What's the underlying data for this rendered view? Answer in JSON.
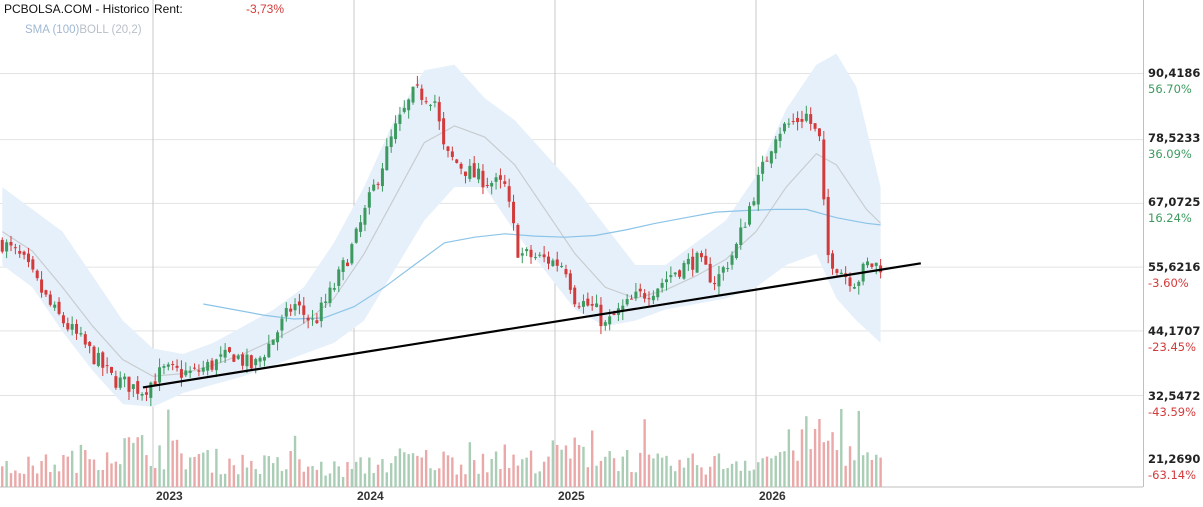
{
  "header": {
    "site": "PCBOLSA.COM - Historico",
    "rent_label": "Rent:",
    "rent_value": "-3,73%"
  },
  "legend": {
    "sma": "SMA (100)",
    "boll": "BOLL (20,2)"
  },
  "colors": {
    "up": "#3c9a5f",
    "down": "#d23b3b",
    "up_volume": "#a9cdb5",
    "down_volume": "#eaa8a8",
    "sma": "#8cc4e8",
    "boll_band": "#e6f0fa",
    "boll_mid": "#c8cccf",
    "trendline": "#000000",
    "grid": "#e3e3e3",
    "year_line": "#c8c8c8"
  },
  "y_axis": {
    "prices": [
      "90,4186",
      "78,5233",
      "67,0725",
      "55,6216",
      "44,1707",
      "32,5472",
      "21,2690"
    ],
    "percents": [
      "56.70%",
      "36.09%",
      "16.24%",
      "-3.60%",
      "-23.45%",
      "-43.59%",
      "-63.14%"
    ],
    "percent_signs": [
      "pos",
      "pos",
      "pos",
      "neg",
      "neg",
      "neg",
      "neg"
    ]
  },
  "x_axis": {
    "years": [
      "2023",
      "2024",
      "2025",
      "2026"
    ]
  },
  "chart_data": {
    "type": "candlestick",
    "title": "",
    "x_range": [
      2022.25,
      2026.65
    ],
    "price_range": [
      21.269,
      90.4186
    ],
    "gridlines": [
      90.4186,
      78.5233,
      67.0725,
      55.6216,
      44.1707,
      32.5472
    ],
    "price_path": [
      [
        2022.25,
        60
      ],
      [
        2022.35,
        57
      ],
      [
        2022.5,
        48
      ],
      [
        2022.65,
        42
      ],
      [
        2022.8,
        35.5
      ],
      [
        2022.95,
        33.5
      ],
      [
        2023.05,
        37
      ],
      [
        2023.2,
        36.5
      ],
      [
        2023.4,
        40
      ],
      [
        2023.5,
        37.5
      ],
      [
        2023.6,
        43
      ],
      [
        2023.7,
        49
      ],
      [
        2023.8,
        45.5
      ],
      [
        2023.9,
        52
      ],
      [
        2024.0,
        60
      ],
      [
        2024.1,
        70
      ],
      [
        2024.2,
        80
      ],
      [
        2024.3,
        87
      ],
      [
        2024.4,
        86
      ],
      [
        2024.45,
        76
      ],
      [
        2024.6,
        72
      ],
      [
        2024.75,
        70
      ],
      [
        2024.82,
        58
      ],
      [
        2024.95,
        57
      ],
      [
        2025.05,
        56
      ],
      [
        2025.1,
        50
      ],
      [
        2025.2,
        48
      ],
      [
        2025.25,
        45
      ],
      [
        2025.3,
        47
      ],
      [
        2025.4,
        50
      ],
      [
        2025.5,
        52
      ],
      [
        2025.6,
        55
      ],
      [
        2025.7,
        57
      ],
      [
        2025.8,
        53
      ],
      [
        2025.9,
        59
      ],
      [
        2026.0,
        70
      ],
      [
        2026.1,
        80
      ],
      [
        2026.25,
        83
      ],
      [
        2026.32,
        78
      ],
      [
        2026.35,
        58
      ],
      [
        2026.45,
        54
      ],
      [
        2026.5,
        53
      ],
      [
        2026.55,
        56
      ],
      [
        2026.62,
        56
      ]
    ],
    "sma100_path": [
      [
        2023.25,
        49
      ],
      [
        2023.4,
        48
      ],
      [
        2023.55,
        47
      ],
      [
        2023.7,
        46.3
      ],
      [
        2023.85,
        46.5
      ],
      [
        2024.0,
        48.5
      ],
      [
        2024.15,
        52
      ],
      [
        2024.3,
        56
      ],
      [
        2024.45,
        60
      ],
      [
        2024.6,
        61
      ],
      [
        2024.75,
        61.6
      ],
      [
        2024.9,
        61.2
      ],
      [
        2025.05,
        61
      ],
      [
        2025.2,
        61.3
      ],
      [
        2025.35,
        62.3
      ],
      [
        2025.5,
        63.5
      ],
      [
        2025.65,
        64.5
      ],
      [
        2025.8,
        65.5
      ],
      [
        2025.95,
        65.8
      ],
      [
        2026.1,
        66
      ],
      [
        2026.25,
        66
      ],
      [
        2026.4,
        64.5
      ],
      [
        2026.55,
        63.5
      ],
      [
        2026.62,
        63.2
      ]
    ],
    "boll_mid_path": [
      [
        2022.25,
        62
      ],
      [
        2022.4,
        58.5
      ],
      [
        2022.55,
        52
      ],
      [
        2022.7,
        45
      ],
      [
        2022.85,
        39
      ],
      [
        2023.0,
        36
      ],
      [
        2023.15,
        36.5
      ],
      [
        2023.3,
        38
      ],
      [
        2023.45,
        40
      ],
      [
        2023.6,
        42.5
      ],
      [
        2023.75,
        45.5
      ],
      [
        2023.9,
        50
      ],
      [
        2024.05,
        58
      ],
      [
        2024.2,
        68
      ],
      [
        2024.35,
        78
      ],
      [
        2024.5,
        81
      ],
      [
        2024.65,
        79
      ],
      [
        2024.8,
        74
      ],
      [
        2024.95,
        66
      ],
      [
        2025.1,
        58
      ],
      [
        2025.25,
        52
      ],
      [
        2025.4,
        50
      ],
      [
        2025.55,
        51.5
      ],
      [
        2025.7,
        54
      ],
      [
        2025.85,
        57
      ],
      [
        2026.0,
        62
      ],
      [
        2026.15,
        70
      ],
      [
        2026.3,
        76
      ],
      [
        2026.4,
        74
      ],
      [
        2026.55,
        66
      ],
      [
        2026.62,
        63.5
      ]
    ],
    "boll_upper_path": [
      [
        2022.25,
        70
      ],
      [
        2022.4,
        66
      ],
      [
        2022.55,
        62
      ],
      [
        2022.7,
        54
      ],
      [
        2022.85,
        46
      ],
      [
        2023.0,
        41
      ],
      [
        2023.15,
        40
      ],
      [
        2023.3,
        42
      ],
      [
        2023.45,
        45
      ],
      [
        2023.6,
        48
      ],
      [
        2023.75,
        52
      ],
      [
        2023.9,
        60
      ],
      [
        2024.05,
        70
      ],
      [
        2024.2,
        82
      ],
      [
        2024.35,
        91
      ],
      [
        2024.5,
        92
      ],
      [
        2024.65,
        86
      ],
      [
        2024.8,
        82
      ],
      [
        2024.95,
        76
      ],
      [
        2025.1,
        70
      ],
      [
        2025.25,
        63
      ],
      [
        2025.4,
        56
      ],
      [
        2025.55,
        56
      ],
      [
        2025.7,
        60
      ],
      [
        2025.85,
        64
      ],
      [
        2026.0,
        72
      ],
      [
        2026.15,
        84
      ],
      [
        2026.3,
        92
      ],
      [
        2026.4,
        94
      ],
      [
        2026.5,
        88
      ],
      [
        2026.62,
        70
      ]
    ],
    "boll_lower_path": [
      [
        2022.25,
        56
      ],
      [
        2022.4,
        52
      ],
      [
        2022.55,
        44
      ],
      [
        2022.7,
        37
      ],
      [
        2022.85,
        31
      ],
      [
        2023.0,
        30.5
      ],
      [
        2023.15,
        33
      ],
      [
        2023.3,
        34.5
      ],
      [
        2023.45,
        36
      ],
      [
        2023.6,
        38
      ],
      [
        2023.75,
        40
      ],
      [
        2023.9,
        42
      ],
      [
        2024.05,
        46
      ],
      [
        2024.2,
        55
      ],
      [
        2024.35,
        64
      ],
      [
        2024.5,
        70
      ],
      [
        2024.65,
        70
      ],
      [
        2024.8,
        62
      ],
      [
        2024.95,
        55
      ],
      [
        2025.1,
        48
      ],
      [
        2025.25,
        45
      ],
      [
        2025.4,
        46
      ],
      [
        2025.55,
        48
      ],
      [
        2025.7,
        49
      ],
      [
        2025.85,
        50
      ],
      [
        2026.0,
        52
      ],
      [
        2026.15,
        56
      ],
      [
        2026.3,
        58
      ],
      [
        2026.4,
        50
      ],
      [
        2026.5,
        46
      ],
      [
        2026.62,
        42
      ]
    ],
    "trendline": [
      [
        2022.95,
        34
      ],
      [
        2026.82,
        56.3
      ]
    ],
    "volume_profile": [
      [
        2022.25,
        0.25
      ],
      [
        2022.55,
        0.35
      ],
      [
        2022.85,
        0.55
      ],
      [
        2023.05,
        0.5
      ],
      [
        2023.35,
        0.35
      ],
      [
        2023.65,
        0.3
      ],
      [
        2023.95,
        0.25
      ],
      [
        2024.25,
        0.4
      ],
      [
        2024.55,
        0.35
      ],
      [
        2024.85,
        0.35
      ],
      [
        2025.05,
        0.5
      ],
      [
        2025.25,
        0.45
      ],
      [
        2025.55,
        0.3
      ],
      [
        2025.85,
        0.35
      ],
      [
        2026.05,
        0.4
      ],
      [
        2026.3,
        0.75
      ],
      [
        2026.5,
        0.45
      ],
      [
        2026.62,
        0.3
      ]
    ]
  }
}
